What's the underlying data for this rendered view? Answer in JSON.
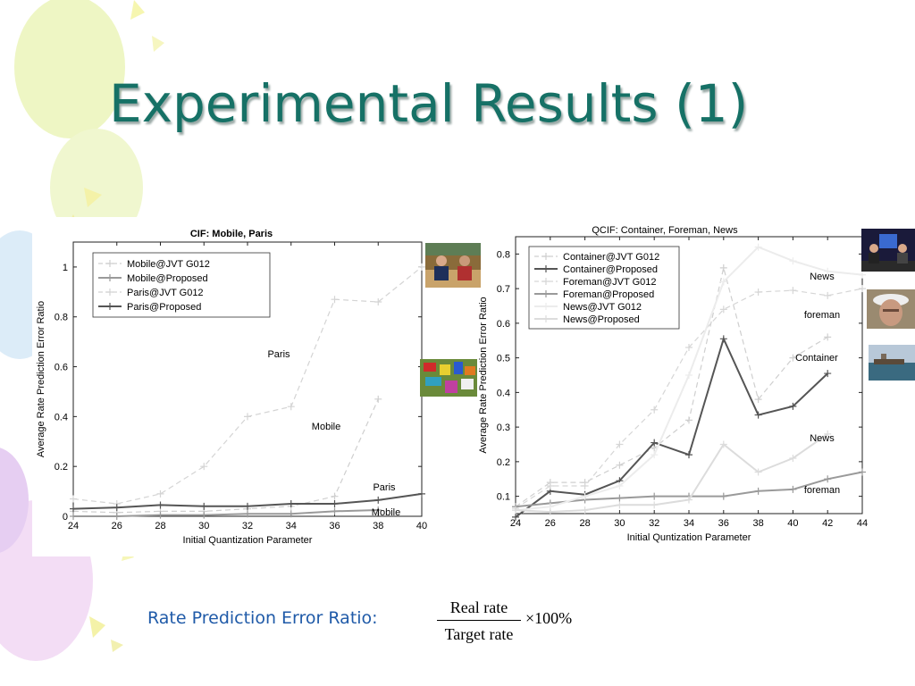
{
  "slide": {
    "title": "Experimental Results (1)"
  },
  "formula": {
    "label": "Rate Prediction Error Ratio:",
    "numerator": "Real rate",
    "denominator": "Target rate",
    "multiplier": "×100%"
  },
  "chart_data": [
    {
      "type": "line",
      "title": "CIF: Mobile, Paris",
      "xlabel": "Initial Quantization Parameter",
      "ylabel": "Average Rate Prediction Error Ratio",
      "x": [
        24,
        26,
        28,
        30,
        32,
        34,
        36,
        38,
        40
      ],
      "xlim": [
        24,
        40
      ],
      "ylim": [
        0,
        1.1
      ],
      "xticks": [
        "24",
        "26",
        "28",
        "30",
        "32",
        "34",
        "36",
        "38",
        "40"
      ],
      "yticks": [
        "0",
        "0.2",
        "0.4",
        "0.6",
        "0.8",
        "1"
      ],
      "legend_position": "top-left",
      "series": [
        {
          "name": "Mobile@JVT G012",
          "style": "dashed",
          "color": "#cfcfcf",
          "values": [
            0.02,
            0.015,
            0.02,
            0.02,
            0.03,
            0.04,
            0.08,
            0.47,
            null
          ]
        },
        {
          "name": "Mobile@Proposed",
          "style": "solid",
          "color": "#9a9a9a",
          "values": [
            0.0,
            0.0,
            0.005,
            0.005,
            0.01,
            0.01,
            0.02,
            0.025,
            null
          ]
        },
        {
          "name": "Paris@JVT G012",
          "style": "dashed",
          "color": "#d4d4d4",
          "values": [
            0.07,
            0.05,
            0.09,
            0.2,
            0.4,
            0.44,
            0.87,
            0.86,
            1.0
          ]
        },
        {
          "name": "Paris@Proposed",
          "style": "solid",
          "color": "#555555",
          "values": [
            0.03,
            0.035,
            0.045,
            0.04,
            0.04,
            0.05,
            0.05,
            0.065,
            0.09
          ]
        }
      ],
      "annotations": [
        "Paris",
        "Mobile",
        "Paris",
        "Mobile"
      ]
    },
    {
      "type": "line",
      "title": "QCIF: Container, Foreman, News",
      "xlabel": "Initial Quntization Parameter",
      "ylabel": "Average Rate Prediction Error Ratio",
      "x": [
        24,
        26,
        28,
        30,
        32,
        34,
        36,
        38,
        40,
        42,
        44
      ],
      "xlim": [
        24,
        44
      ],
      "ylim": [
        0.05,
        0.85
      ],
      "xticks": [
        "24",
        "26",
        "28",
        "30",
        "32",
        "34",
        "36",
        "38",
        "40",
        "42",
        "44"
      ],
      "yticks": [
        "0.1",
        "0.2",
        "0.3",
        "0.4",
        "0.5",
        "0.6",
        "0.7",
        "0.8"
      ],
      "legend_position": "top-left",
      "series": [
        {
          "name": "Container@JVT G012",
          "style": "dashed",
          "color": "#cfcfcf",
          "values": [
            0.07,
            0.14,
            0.14,
            0.19,
            0.24,
            0.32,
            0.76,
            0.38,
            0.5,
            0.56,
            null
          ]
        },
        {
          "name": "Container@Proposed",
          "style": "solid",
          "color": "#555555",
          "values": [
            0.04,
            0.115,
            0.105,
            0.145,
            0.255,
            0.22,
            0.555,
            0.335,
            0.36,
            0.455,
            null
          ]
        },
        {
          "name": "Foreman@JVT G012",
          "style": "dashed",
          "color": "#d6d6d6",
          "values": [
            0.065,
            0.13,
            0.13,
            0.25,
            0.35,
            0.53,
            0.64,
            0.69,
            0.695,
            0.68,
            0.7
          ]
        },
        {
          "name": "Foreman@Proposed",
          "style": "solid",
          "color": "#9a9a9a",
          "values": [
            0.07,
            0.08,
            0.09,
            0.095,
            0.1,
            0.1,
            0.1,
            0.115,
            0.12,
            0.15,
            0.17
          ]
        },
        {
          "name": "News@JVT G012",
          "style": "solid",
          "color": "#ececec",
          "values": [
            0.06,
            0.07,
            0.1,
            0.13,
            0.22,
            0.45,
            0.72,
            0.82,
            0.78,
            0.75,
            0.74
          ]
        },
        {
          "name": "News@Proposed",
          "style": "solid",
          "color": "#dcdcdc",
          "values": [
            0.06,
            0.055,
            0.06,
            0.075,
            0.075,
            0.09,
            0.25,
            0.17,
            0.21,
            0.28,
            null
          ]
        }
      ],
      "annotations": [
        "News",
        "foreman",
        "Container",
        "News",
        "foreman"
      ]
    }
  ]
}
